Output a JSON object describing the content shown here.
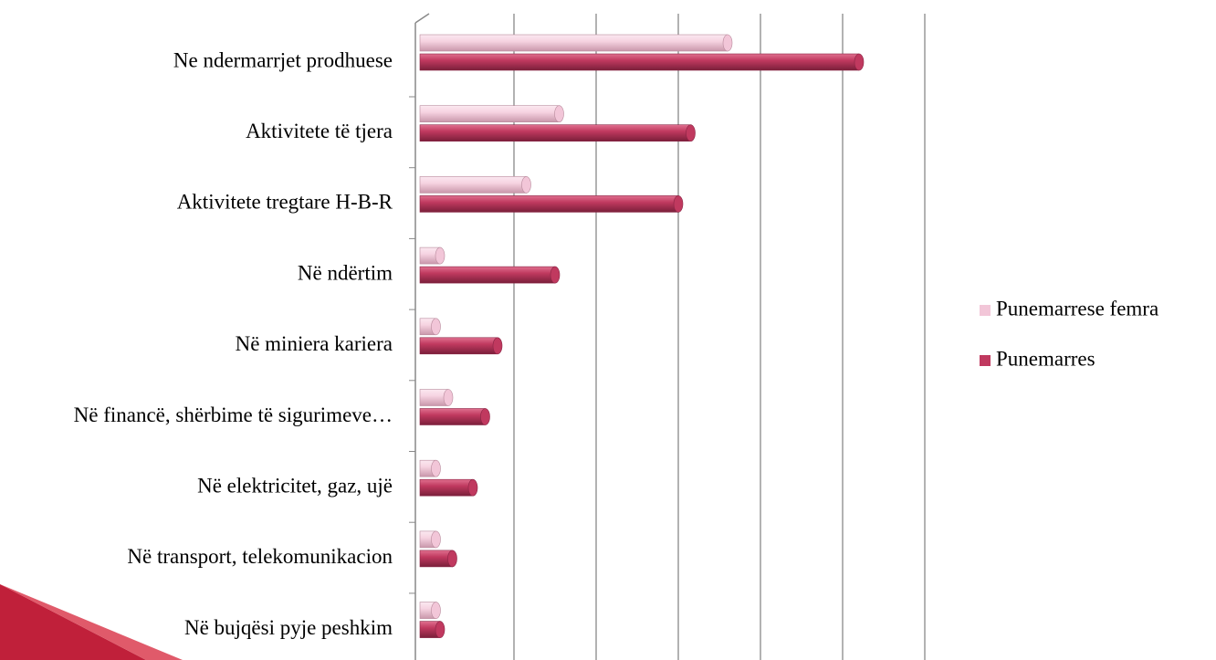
{
  "chart_data": {
    "type": "bar",
    "orientation": "horizontal",
    "categories": [
      "Ne ndermarrjet prodhuese",
      "Aktivitete të tjera",
      "Aktivitete tregtare H-B-R",
      "Në ndërtim",
      "Në miniera kariera",
      "Në financë, shërbime të sigurimeve…",
      "Në elektricitet, gaz, ujë",
      "Në transport, telekomunikacion",
      "Në bujqësi pyje peshkim"
    ],
    "series": [
      {
        "name": "Punemarrese femra",
        "color": "#f2c6d8",
        "values": [
          3.6,
          1.55,
          1.15,
          0.1,
          0.05,
          0.2,
          0.05,
          0.05,
          0.05
        ]
      },
      {
        "name": "Punemarres",
        "color": "#c0395f",
        "values": [
          5.2,
          3.15,
          3.0,
          1.5,
          0.8,
          0.65,
          0.5,
          0.25,
          0.1
        ]
      }
    ],
    "xlim": [
      0,
      6
    ],
    "xticks": [
      0,
      1,
      2,
      3,
      4,
      5,
      6
    ],
    "grid": true,
    "legend": "right"
  }
}
